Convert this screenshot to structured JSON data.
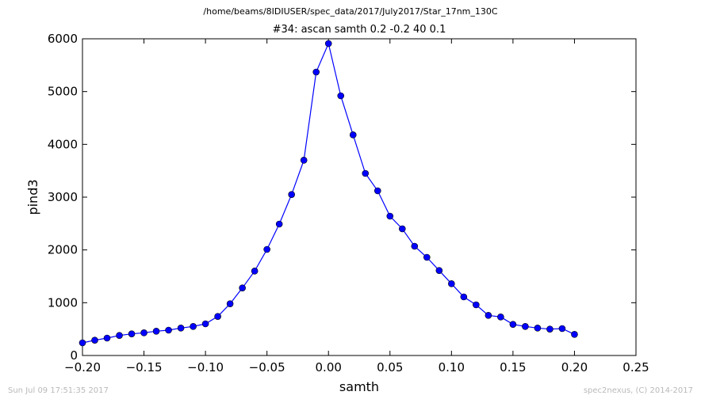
{
  "header": {
    "file_path": "/home/beams/8IDIUSER/spec_data/2017/July2017/Star_17nm_130C",
    "scan_title": "#34: ascan  samth 0.2 -0.2  40 0.1"
  },
  "footer": {
    "timestamp": "Sun Jul 09 17:51:35 2017",
    "credit": "spec2nexus, (C) 2014-2017"
  },
  "chart_data": {
    "type": "line",
    "title": "#34: ascan  samth 0.2 -0.2  40 0.1",
    "xlabel": "samth",
    "ylabel": "pind3",
    "xlim": [
      -0.2,
      0.25
    ],
    "ylim": [
      0,
      6000
    ],
    "grid": false,
    "x_ticks": [
      -0.2,
      -0.15,
      -0.1,
      -0.05,
      0.0,
      0.05,
      0.1,
      0.15,
      0.2,
      0.25
    ],
    "x_tick_labels": [
      "−0.20",
      "−0.15",
      "−0.10",
      "−0.05",
      "0.00",
      "0.05",
      "0.10",
      "0.15",
      "0.20",
      "0.25"
    ],
    "y_ticks": [
      0,
      1000,
      2000,
      3000,
      4000,
      5000,
      6000
    ],
    "y_tick_labels": [
      "0",
      "1000",
      "2000",
      "3000",
      "4000",
      "5000",
      "6000"
    ],
    "series": [
      {
        "color": "#0000ff",
        "marker": "circle",
        "x": [
          -0.2,
          -0.19,
          -0.18,
          -0.17,
          -0.16,
          -0.15,
          -0.14,
          -0.13,
          -0.12,
          -0.11,
          -0.1,
          -0.09,
          -0.08,
          -0.07,
          -0.06,
          -0.05,
          -0.04,
          -0.03,
          -0.02,
          -0.01,
          0.0,
          0.01,
          0.02,
          0.03,
          0.04,
          0.05,
          0.06,
          0.07,
          0.08,
          0.09,
          0.1,
          0.11,
          0.12,
          0.13,
          0.14,
          0.15,
          0.16,
          0.17,
          0.18,
          0.19,
          0.2
        ],
        "y": [
          240,
          290,
          330,
          380,
          410,
          430,
          460,
          480,
          520,
          550,
          600,
          740,
          980,
          1280,
          1600,
          2010,
          2490,
          3050,
          3700,
          5370,
          5910,
          4920,
          4180,
          3450,
          3120,
          2640,
          2400,
          2070,
          1860,
          1610,
          1360,
          1110,
          960,
          760,
          730,
          590,
          550,
          520,
          500,
          510,
          400
        ]
      }
    ]
  }
}
